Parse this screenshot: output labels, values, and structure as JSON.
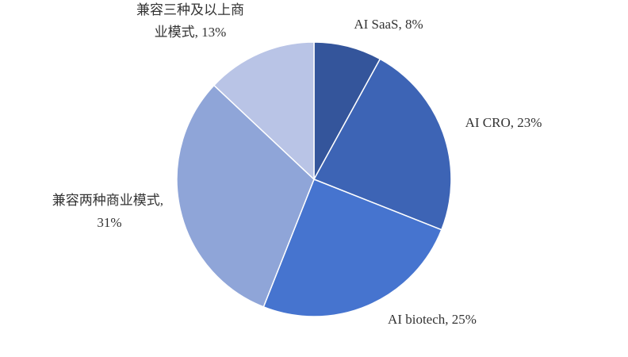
{
  "chart_data": {
    "type": "pie",
    "values": [
      8,
      23,
      25,
      31,
      13
    ],
    "value_labels": [
      "AI SaaS, 8%",
      "AI CRO, 23%",
      "AI biotech, 25%",
      "兼容两种商业模式, 31%",
      "兼容三种及以上商业模式, 13%"
    ],
    "colors": [
      "#34559b",
      "#3d64b5",
      "#4674cf",
      "#8fa5d8",
      "#b9c4e6"
    ]
  }
}
